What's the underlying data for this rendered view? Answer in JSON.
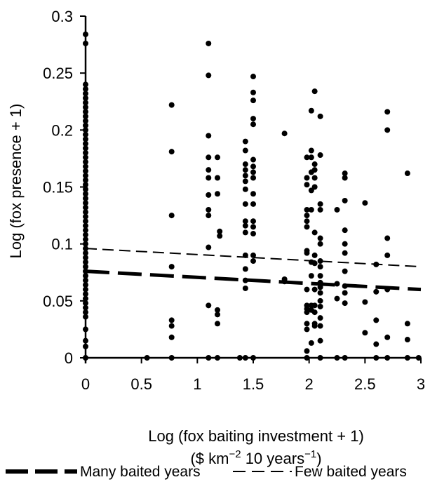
{
  "chart_data": {
    "type": "scatter",
    "title": "",
    "xlabel_line1": "Log (fox baiting investment + 1)",
    "xlabel_line2_prefix": "($ km",
    "xlabel_line2_sup1": "−2",
    "xlabel_line2_mid": " 10 years",
    "xlabel_line2_sup2": "−1",
    "xlabel_line2_suffix": ")",
    "ylabel": "Log (fox presence + 1)",
    "xlim": [
      0,
      3
    ],
    "ylim": [
      0,
      0.3
    ],
    "x_ticks": [
      0,
      0.5,
      1,
      1.5,
      2,
      2.5,
      3
    ],
    "x_tick_labels": [
      "0",
      "0.5",
      "1",
      "1.5",
      "2",
      "2.5",
      "3"
    ],
    "y_ticks": [
      0,
      0.05,
      0.1,
      0.15,
      0.2,
      0.25,
      0.3
    ],
    "y_tick_labels": [
      "0",
      "0.05",
      "0.1",
      "0.15",
      "0.2",
      "0.25",
      "0.3"
    ],
    "grid": false,
    "legend_position": "bottom",
    "series": [
      {
        "name": "Many baited years",
        "kind": "line",
        "style": "long-dash-thick",
        "x": [
          0,
          3
        ],
        "y": [
          0.076,
          0.06
        ]
      },
      {
        "name": "Few baited years",
        "kind": "line",
        "style": "dash-thin",
        "x": [
          0,
          3
        ],
        "y": [
          0.096,
          0.08
        ]
      }
    ],
    "points": [
      [
        0,
        0.284
      ],
      [
        0,
        0.276
      ],
      [
        0,
        0.24
      ],
      [
        0,
        0.236
      ],
      [
        0,
        0.232
      ],
      [
        0,
        0.228
      ],
      [
        0,
        0.224
      ],
      [
        0,
        0.22
      ],
      [
        0,
        0.216
      ],
      [
        0,
        0.212
      ],
      [
        0,
        0.208
      ],
      [
        0,
        0.204
      ],
      [
        0,
        0.2
      ],
      [
        0,
        0.196
      ],
      [
        0,
        0.192
      ],
      [
        0,
        0.188
      ],
      [
        0,
        0.184
      ],
      [
        0,
        0.18
      ],
      [
        0,
        0.176
      ],
      [
        0,
        0.172
      ],
      [
        0,
        0.168
      ],
      [
        0,
        0.164
      ],
      [
        0,
        0.16
      ],
      [
        0,
        0.156
      ],
      [
        0,
        0.152
      ],
      [
        0,
        0.148
      ],
      [
        0,
        0.144
      ],
      [
        0,
        0.14
      ],
      [
        0,
        0.136
      ],
      [
        0,
        0.132
      ],
      [
        0,
        0.128
      ],
      [
        0,
        0.124
      ],
      [
        0,
        0.12
      ],
      [
        0,
        0.116
      ],
      [
        0,
        0.112
      ],
      [
        0,
        0.108
      ],
      [
        0,
        0.104
      ],
      [
        0,
        0.1
      ],
      [
        0,
        0.096
      ],
      [
        0,
        0.092
      ],
      [
        0,
        0.088
      ],
      [
        0,
        0.084
      ],
      [
        0,
        0.08
      ],
      [
        0,
        0.076
      ],
      [
        0,
        0.072
      ],
      [
        0,
        0.068
      ],
      [
        0,
        0.064
      ],
      [
        0,
        0.06
      ],
      [
        0,
        0.056
      ],
      [
        0,
        0.052
      ],
      [
        0,
        0.048
      ],
      [
        0,
        0.044
      ],
      [
        0,
        0.04
      ],
      [
        0,
        0.036
      ],
      [
        0,
        0.025
      ],
      [
        0,
        0.015
      ],
      [
        0,
        0.01
      ],
      [
        0,
        0
      ],
      [
        0.55,
        0
      ],
      [
        0.77,
        0.222
      ],
      [
        0.77,
        0.181
      ],
      [
        0.77,
        0.125
      ],
      [
        0.77,
        0.08
      ],
      [
        0.77,
        0.033
      ],
      [
        0.77,
        0.028
      ],
      [
        0.77,
        0.018
      ],
      [
        0.77,
        0
      ],
      [
        1.1,
        0.276
      ],
      [
        1.1,
        0.248
      ],
      [
        1.1,
        0.195
      ],
      [
        1.1,
        0.176
      ],
      [
        1.1,
        0.165
      ],
      [
        1.1,
        0.158
      ],
      [
        1.1,
        0.143
      ],
      [
        1.1,
        0.13
      ],
      [
        1.1,
        0.125
      ],
      [
        1.1,
        0.097
      ],
      [
        1.1,
        0.046
      ],
      [
        1.1,
        0
      ],
      [
        1.18,
        0.176
      ],
      [
        1.18,
        0.158
      ],
      [
        1.18,
        0.144
      ],
      [
        1.18,
        0.042
      ],
      [
        1.18,
        0.038
      ],
      [
        1.18,
        0.03
      ],
      [
        1.18,
        0
      ],
      [
        1.2,
        0.111
      ],
      [
        1.2,
        0.107
      ],
      [
        1.38,
        0
      ],
      [
        1.43,
        0.19
      ],
      [
        1.43,
        0.182
      ],
      [
        1.43,
        0.17
      ],
      [
        1.43,
        0.165
      ],
      [
        1.43,
        0.16
      ],
      [
        1.43,
        0.155
      ],
      [
        1.43,
        0.148
      ],
      [
        1.43,
        0.135
      ],
      [
        1.43,
        0.12
      ],
      [
        1.43,
        0.116
      ],
      [
        1.43,
        0.11
      ],
      [
        1.43,
        0.09
      ],
      [
        1.43,
        0.078
      ],
      [
        1.43,
        0.068
      ],
      [
        1.43,
        0.061
      ],
      [
        1.43,
        0
      ],
      [
        1.5,
        0.247
      ],
      [
        1.5,
        0.233
      ],
      [
        1.5,
        0.226
      ],
      [
        1.5,
        0.21
      ],
      [
        1.5,
        0.205
      ],
      [
        1.5,
        0.174
      ],
      [
        1.5,
        0.168
      ],
      [
        1.5,
        0.163
      ],
      [
        1.5,
        0.158
      ],
      [
        1.5,
        0.144
      ],
      [
        1.5,
        0.135
      ],
      [
        1.5,
        0.12
      ],
      [
        1.5,
        0.115
      ],
      [
        1.5,
        0.109
      ],
      [
        1.5,
        0.09
      ],
      [
        1.5,
        0.085
      ],
      [
        1.5,
        0
      ],
      [
        1.78,
        0.197
      ],
      [
        1.78,
        0.069
      ],
      [
        1.78,
        0.067
      ],
      [
        1.98,
        0.176
      ],
      [
        1.98,
        0.158
      ],
      [
        1.98,
        0.152
      ],
      [
        1.98,
        0.13
      ],
      [
        1.98,
        0.125
      ],
      [
        1.98,
        0.12
      ],
      [
        1.98,
        0.115
      ],
      [
        1.98,
        0.094
      ],
      [
        1.98,
        0.092
      ],
      [
        1.98,
        0.06
      ],
      [
        1.98,
        0.046
      ],
      [
        1.98,
        0.043
      ],
      [
        1.98,
        0.04
      ],
      [
        1.98,
        0.03
      ],
      [
        1.98,
        0.025
      ],
      [
        1.98,
        0.006
      ],
      [
        1.98,
        0
      ],
      [
        2.02,
        0.217
      ],
      [
        2.02,
        0.182
      ],
      [
        2.02,
        0.176
      ],
      [
        2.02,
        0.163
      ],
      [
        2.02,
        0.147
      ],
      [
        2.02,
        0.13
      ],
      [
        2.02,
        0.084
      ],
      [
        2.02,
        0.072
      ],
      [
        2.02,
        0.046
      ],
      [
        2.02,
        0.042
      ],
      [
        2.02,
        0.013
      ],
      [
        2.05,
        0.234
      ],
      [
        2.05,
        0.17
      ],
      [
        2.05,
        0.165
      ],
      [
        2.05,
        0.158
      ],
      [
        2.05,
        0.15
      ],
      [
        2.05,
        0.11
      ],
      [
        2.05,
        0.09
      ],
      [
        2.05,
        0.083
      ],
      [
        2.05,
        0.06
      ],
      [
        2.05,
        0.046
      ],
      [
        2.05,
        0.04
      ],
      [
        2.05,
        0.03
      ],
      [
        2.05,
        0.028
      ],
      [
        2.1,
        0.212
      ],
      [
        2.1,
        0.178
      ],
      [
        2.1,
        0.135
      ],
      [
        2.1,
        0.13
      ],
      [
        2.1,
        0.105
      ],
      [
        2.1,
        0.1
      ],
      [
        2.1,
        0.085
      ],
      [
        2.1,
        0.08
      ],
      [
        2.1,
        0.072
      ],
      [
        2.1,
        0.066
      ],
      [
        2.1,
        0.062
      ],
      [
        2.1,
        0.057
      ],
      [
        2.1,
        0.05
      ],
      [
        2.1,
        0.045
      ],
      [
        2.1,
        0.035
      ],
      [
        2.1,
        0.028
      ],
      [
        2.1,
        0.015
      ],
      [
        2.1,
        0
      ],
      [
        2.25,
        0.13
      ],
      [
        2.25,
        0.065
      ],
      [
        2.25,
        0.052
      ],
      [
        2.25,
        0
      ],
      [
        2.32,
        0.162
      ],
      [
        2.32,
        0.158
      ],
      [
        2.32,
        0.138
      ],
      [
        2.32,
        0.112
      ],
      [
        2.32,
        0.1
      ],
      [
        2.32,
        0.092
      ],
      [
        2.32,
        0.076
      ],
      [
        2.32,
        0.063
      ],
      [
        2.32,
        0.057
      ],
      [
        2.32,
        0.048
      ],
      [
        2.32,
        0
      ],
      [
        2.5,
        0.136
      ],
      [
        2.5,
        0.049
      ],
      [
        2.5,
        0.022
      ],
      [
        2.6,
        0.082
      ],
      [
        2.6,
        0.058
      ],
      [
        2.6,
        0.033
      ],
      [
        2.6,
        0.012
      ],
      [
        2.6,
        0
      ],
      [
        2.7,
        0.216
      ],
      [
        2.7,
        0.2
      ],
      [
        2.7,
        0.105
      ],
      [
        2.7,
        0.09
      ],
      [
        2.7,
        0.06
      ],
      [
        2.7,
        0.018
      ],
      [
        2.7,
        0
      ],
      [
        2.88,
        0.162
      ],
      [
        2.88,
        0.03
      ],
      [
        2.88,
        0.016
      ],
      [
        2.88,
        0
      ],
      [
        2.98,
        0
      ]
    ]
  }
}
